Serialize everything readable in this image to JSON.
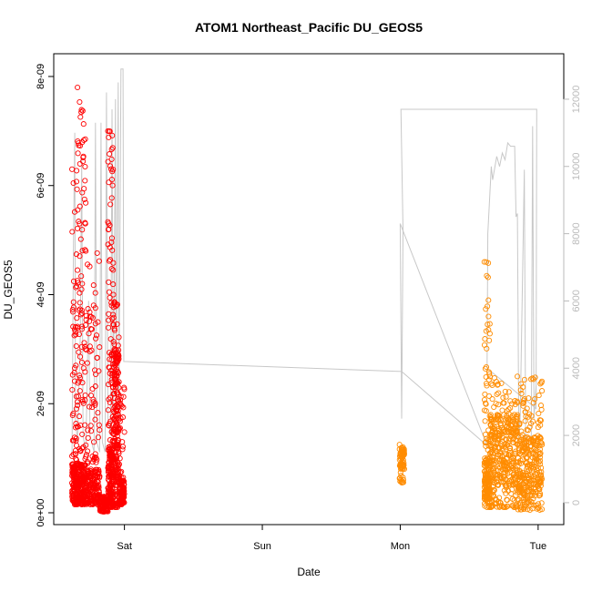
{
  "chart_data": {
    "type": "scatter",
    "title": "ATOM1 Northeast_Pacific DU_GEOS5",
    "xlabel": "Date",
    "ylabel": "DU_GEOS5",
    "x_ticks": [
      {
        "label": "Sat",
        "value": 1.0
      },
      {
        "label": "Sun",
        "value": 2.0
      },
      {
        "label": "Mon",
        "value": 3.0
      },
      {
        "label": "Tue",
        "value": 4.0
      }
    ],
    "xlim": [
      0.56,
      4.1
    ],
    "ylim": [
      0,
      8.2e-09
    ],
    "y_ticks": [
      {
        "label": "0e+00",
        "value": 0
      },
      {
        "label": "2e-09",
        "value": 2e-09
      },
      {
        "label": "4e-09",
        "value": 4e-09
      },
      {
        "label": "6e-09",
        "value": 6e-09
      },
      {
        "label": "8e-09",
        "value": 8e-09
      }
    ],
    "y2lim": [
      -300,
      13000
    ],
    "y2_ticks": [
      {
        "label": "0",
        "value": 0
      },
      {
        "label": "2000",
        "value": 2000
      },
      {
        "label": "4000",
        "value": 4000
      },
      {
        "label": "6000",
        "value": 6000
      },
      {
        "label": "8000",
        "value": 8000
      },
      {
        "label": "10000",
        "value": 10000
      },
      {
        "label": "12000",
        "value": 12000
      }
    ],
    "grid": false,
    "series": [
      {
        "color": "#ff0000",
        "marker": "open-circle",
        "clusters": [
          {
            "x": [
              0.62,
              0.66
            ],
            "y": [
              1.5e-10,
              6.3e-09
            ],
            "base": [
              1.5e-10,
              9e-10
            ],
            "n": 170
          },
          {
            "x": [
              0.66,
              0.72
            ],
            "y": [
              1.5e-10,
              7.8e-09
            ],
            "base": [
              1.5e-10,
              9e-10
            ],
            "n": 240
          },
          {
            "x": [
              0.72,
              0.82
            ],
            "y": [
              1.5e-10,
              4.8e-09
            ],
            "base": [
              1.5e-10,
              8e-10
            ],
            "n": 210
          },
          {
            "x": [
              0.82,
              0.88
            ],
            "y": [
              2e-11,
              3e-10
            ],
            "base": [
              2e-11,
              3e-10
            ],
            "n": 90
          },
          {
            "x": [
              0.88,
              0.92
            ],
            "y": [
              1e-10,
              7e-09
            ],
            "base": [
              1e-10,
              1.2e-09
            ],
            "n": 230
          },
          {
            "x": [
              0.92,
              0.96
            ],
            "y": [
              1e-10,
              4e-09
            ],
            "base": [
              5e-10,
              3e-09
            ],
            "n": 220
          },
          {
            "x": [
              0.96,
              1.0
            ],
            "y": [
              1.5e-10,
              2.4e-09
            ],
            "base": [
              1.5e-10,
              6e-10
            ],
            "n": 120
          }
        ]
      },
      {
        "color": "#ff8c00",
        "marker": "open-circle",
        "clusters": [
          {
            "x": [
              2.995,
              3.03
            ],
            "y": [
              5.5e-10,
              1.25e-09
            ],
            "base": [
              8e-10,
              1.2e-09
            ],
            "n": 70
          },
          {
            "x": [
              3.61,
              3.65
            ],
            "y": [
              1e-10,
              4.6e-09
            ],
            "base": [
              2e-10,
              1e-09
            ],
            "n": 170
          },
          {
            "x": [
              3.65,
              3.85
            ],
            "y": [
              1e-10,
              2.5e-09
            ],
            "base": [
              5e-10,
              1.8e-09
            ],
            "n": 380
          },
          {
            "x": [
              3.85,
              4.03
            ],
            "y": [
              5e-11,
              2.5e-09
            ],
            "base": [
              3e-10,
              1.4e-09
            ],
            "n": 320
          }
        ]
      }
    ],
    "secondary_line": {
      "color": "#c8c8c8",
      "points": [
        [
          0.62,
          1500
        ],
        [
          0.63,
          7500
        ],
        [
          0.64,
          11000
        ],
        [
          0.645,
          2500
        ],
        [
          0.66,
          1800
        ],
        [
          0.68,
          5000
        ],
        [
          0.69,
          10200
        ],
        [
          0.7,
          2000
        ],
        [
          0.72,
          1500
        ],
        [
          0.74,
          6000
        ],
        [
          0.75,
          2000
        ],
        [
          0.78,
          1500
        ],
        [
          0.79,
          11300
        ],
        [
          0.8,
          1800
        ],
        [
          0.82,
          1500
        ],
        [
          0.83,
          11300
        ],
        [
          0.84,
          1800
        ],
        [
          0.86,
          1500
        ],
        [
          0.87,
          12200
        ],
        [
          0.88,
          2500
        ],
        [
          0.9,
          2000
        ],
        [
          0.91,
          11700
        ],
        [
          0.92,
          2500
        ],
        [
          0.935,
          12000
        ],
        [
          0.94,
          3000
        ],
        [
          0.955,
          12500
        ],
        [
          0.96,
          2500
        ],
        [
          0.975,
          12900
        ],
        [
          0.99,
          12900
        ],
        [
          0.995,
          4200
        ],
        [
          3.01,
          3900
        ],
        [
          3.63,
          1700
        ],
        [
          3.0,
          8300
        ],
        [
          3.01,
          2500
        ],
        [
          3.02,
          8100
        ],
        [
          3.005,
          11700
        ],
        [
          3.99,
          11700
        ],
        [
          3.985,
          2800
        ],
        [
          3.63,
          4000
        ],
        [
          3.635,
          8000
        ],
        [
          3.66,
          10000
        ],
        [
          3.67,
          9600
        ],
        [
          3.7,
          10300
        ],
        [
          3.72,
          10000
        ],
        [
          3.74,
          10400
        ],
        [
          3.76,
          10200
        ],
        [
          3.78,
          10700
        ],
        [
          3.8,
          10600
        ],
        [
          3.83,
          10600
        ],
        [
          3.84,
          8500
        ],
        [
          3.85,
          8600
        ],
        [
          3.86,
          1800
        ],
        [
          3.87,
          2600
        ],
        [
          3.9,
          9900
        ],
        [
          3.91,
          1500
        ],
        [
          3.95,
          1800
        ],
        [
          3.96,
          11200
        ],
        [
          3.97,
          2500
        ],
        [
          3.99,
          3800
        ]
      ]
    }
  }
}
